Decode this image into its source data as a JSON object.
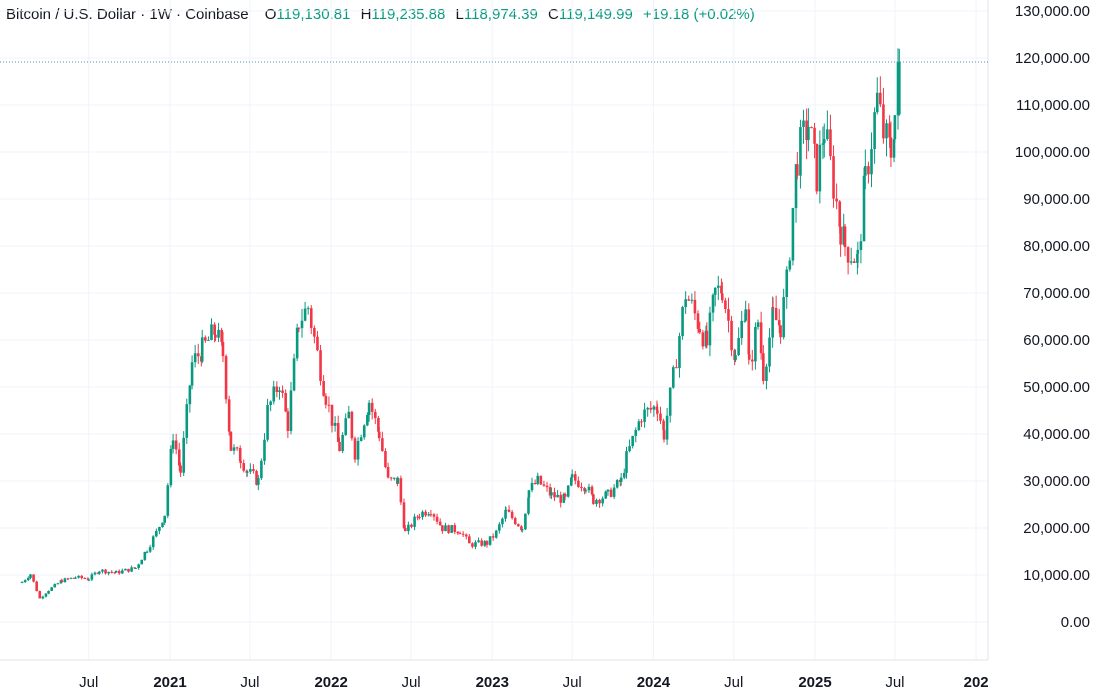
{
  "legend": {
    "symbol": "Bitcoin / U.S. Dollar · 1W · Coinbase",
    "open_label": "O",
    "open": "119,130.81",
    "high_label": "H",
    "high": "119,235.88",
    "low_label": "L",
    "low": "118,974.39",
    "close_label": "C",
    "close": "119,149.99",
    "change": "+19.18 (+0.02%)"
  },
  "colors": {
    "up": "#089981",
    "down": "#f23645",
    "price_line": "#4a90c2",
    "grid": "#f0f3fa",
    "text": "#131722"
  },
  "chart_data": {
    "type": "candlestick",
    "title": "Bitcoin / U.S. Dollar · 1W · Coinbase",
    "ylim": [
      -2000,
      134000
    ],
    "y_ticks": [
      "130,000.00",
      "120,000.00",
      "110,000.00",
      "100,000.00",
      "90,000.00",
      "80,000.00",
      "70,000.00",
      "60,000.00",
      "50,000.00",
      "40,000.00",
      "30,000.00",
      "20,000.00",
      "10,000.00",
      "0.00"
    ],
    "y_tick_values": [
      130000,
      120000,
      110000,
      100000,
      90000,
      80000,
      70000,
      60000,
      50000,
      40000,
      30000,
      20000,
      10000,
      0
    ],
    "x_ticks": [
      "Jul",
      "2021",
      "Jul",
      "2022",
      "Jul",
      "2023",
      "Jul",
      "2024",
      "Jul",
      "2025",
      "Jul",
      "202"
    ],
    "x_tick_bold": [
      false,
      true,
      false,
      true,
      false,
      true,
      false,
      true,
      false,
      true,
      false,
      true
    ],
    "x_tick_dates": [
      "2020-07-01",
      "2021-01-01",
      "2021-07-01",
      "2022-01-01",
      "2022-07-01",
      "2023-01-01",
      "2023-07-01",
      "2024-01-01",
      "2024-07-01",
      "2025-01-01",
      "2025-07-01",
      "2026-01-01"
    ],
    "last_price": 119149.99,
    "grid": true,
    "series": [
      {
        "name": "Bitcoin / U.S. Dollar",
        "weekly_close_path": [
          [
            "2020-02-01",
            8500
          ],
          [
            "2020-02-20",
            10200
          ],
          [
            "2020-03-12",
            5000
          ],
          [
            "2020-04-01",
            6800
          ],
          [
            "2020-05-01",
            8800
          ],
          [
            "2020-06-01",
            9500
          ],
          [
            "2020-07-01",
            9200
          ],
          [
            "2020-07-25",
            11000
          ],
          [
            "2020-09-01",
            10500
          ],
          [
            "2020-10-15",
            11500
          ],
          [
            "2020-11-10",
            15500
          ],
          [
            "2020-12-01",
            19000
          ],
          [
            "2020-12-20",
            23000
          ],
          [
            "2021-01-08",
            40000
          ],
          [
            "2021-01-25",
            32000
          ],
          [
            "2021-02-20",
            55000
          ],
          [
            "2021-03-15",
            58000
          ],
          [
            "2021-04-14",
            62000
          ],
          [
            "2021-05-01",
            57000
          ],
          [
            "2021-05-19",
            37000
          ],
          [
            "2021-06-10",
            35000
          ],
          [
            "2021-06-25",
            32000
          ],
          [
            "2021-07-20",
            30000
          ],
          [
            "2021-08-10",
            45000
          ],
          [
            "2021-09-06",
            51000
          ],
          [
            "2021-09-25",
            42000
          ],
          [
            "2021-10-20",
            64000
          ],
          [
            "2021-11-10",
            67000
          ],
          [
            "2021-12-01",
            57000
          ],
          [
            "2021-12-20",
            48000
          ],
          [
            "2022-01-20",
            37000
          ],
          [
            "2022-02-10",
            44000
          ],
          [
            "2022-02-24",
            36000
          ],
          [
            "2022-03-28",
            47000
          ],
          [
            "2022-04-20",
            40000
          ],
          [
            "2022-05-10",
            30000
          ],
          [
            "2022-06-01",
            30000
          ],
          [
            "2022-06-18",
            19000
          ],
          [
            "2022-07-20",
            23000
          ],
          [
            "2022-08-15",
            24000
          ],
          [
            "2022-09-10",
            20000
          ],
          [
            "2022-10-20",
            19500
          ],
          [
            "2022-11-10",
            16500
          ],
          [
            "2022-12-20",
            16800
          ],
          [
            "2023-01-10",
            19000
          ],
          [
            "2023-02-01",
            23500
          ],
          [
            "2023-03-10",
            20000
          ],
          [
            "2023-03-25",
            28000
          ],
          [
            "2023-04-14",
            30000
          ],
          [
            "2023-05-15",
            27000
          ],
          [
            "2023-06-15",
            26000
          ],
          [
            "2023-07-01",
            30500
          ],
          [
            "2023-08-01",
            29000
          ],
          [
            "2023-08-18",
            26000
          ],
          [
            "2023-09-20",
            27000
          ],
          [
            "2023-10-20",
            30000
          ],
          [
            "2023-11-01",
            35000
          ],
          [
            "2023-12-05",
            44000
          ],
          [
            "2024-01-10",
            46000
          ],
          [
            "2024-01-25",
            40000
          ],
          [
            "2024-02-15",
            52000
          ],
          [
            "2024-03-14",
            70000
          ],
          [
            "2024-04-15",
            63000
          ],
          [
            "2024-05-01",
            59000
          ],
          [
            "2024-05-20",
            70000
          ],
          [
            "2024-06-05",
            71000
          ],
          [
            "2024-07-05",
            56000
          ],
          [
            "2024-07-28",
            68000
          ],
          [
            "2024-08-05",
            54000
          ],
          [
            "2024-08-25",
            64000
          ],
          [
            "2024-09-06",
            53000
          ],
          [
            "2024-09-28",
            65000
          ],
          [
            "2024-10-15",
            63000
          ],
          [
            "2024-10-29",
            72000
          ],
          [
            "2024-11-12",
            88000
          ],
          [
            "2024-11-22",
            99000
          ],
          [
            "2024-12-17",
            106000
          ],
          [
            "2025-01-05",
            95000
          ],
          [
            "2025-01-22",
            105000
          ],
          [
            "2025-02-05",
            97000
          ],
          [
            "2025-02-28",
            84000
          ],
          [
            "2025-03-10",
            80000
          ],
          [
            "2025-04-08",
            77000
          ],
          [
            "2025-04-25",
            94000
          ],
          [
            "2025-05-22",
            111000
          ],
          [
            "2025-06-05",
            104000
          ],
          [
            "2025-06-22",
            100000
          ],
          [
            "2025-07-01",
            108000
          ],
          [
            "2025-07-11",
            119149.99
          ]
        ]
      }
    ]
  }
}
